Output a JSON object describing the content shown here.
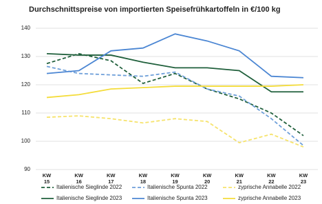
{
  "chart_data": {
    "type": "line",
    "title": "Durchschnittspreise von importierten Speisefrühkartoffeln in €/100 kg",
    "categories": [
      "KW 15",
      "KW 16",
      "KW 17",
      "KW 18",
      "KW 19",
      "KW 20",
      "KW 21",
      "KW 22",
      "KW 23"
    ],
    "ylim": [
      90,
      140
    ],
    "yticks": [
      90,
      100,
      110,
      120,
      130,
      140
    ],
    "grid": true,
    "series": [
      {
        "name": "Italienische Sieglinde 2022",
        "color": "#1f5f3b",
        "dashed": true,
        "values": [
          127.5,
          131,
          128.5,
          120.5,
          124,
          118.5,
          115,
          110,
          102
        ]
      },
      {
        "name": "Italienische Spunta 2022",
        "color": "#6e9fd9",
        "dashed": true,
        "values": [
          126.5,
          124,
          123.5,
          123,
          124.5,
          118.5,
          116,
          108,
          98.5
        ]
      },
      {
        "name": "zyprische Annabelle 2022",
        "color": "#f6e36c",
        "dashed": true,
        "values": [
          108.5,
          109,
          108,
          106.5,
          108,
          107,
          99.5,
          102.5,
          98
        ]
      },
      {
        "name": "Italienische Sieglinde 2023",
        "color": "#1f5f3b",
        "dashed": false,
        "values": [
          131,
          130.5,
          130.5,
          128,
          126,
          126,
          125,
          117.5,
          117.5
        ]
      },
      {
        "name": "Italienische Spunta 2023",
        "color": "#4b86d3",
        "dashed": false,
        "values": [
          124,
          125,
          132,
          133,
          138,
          135.5,
          132,
          123,
          122.5
        ]
      },
      {
        "name": "zyprische Annabelle 2023",
        "color": "#f4dc3a",
        "dashed": false,
        "values": [
          115.5,
          116.5,
          118.5,
          119,
          119.5,
          119.5,
          119.5,
          119.5,
          120
        ]
      }
    ]
  }
}
